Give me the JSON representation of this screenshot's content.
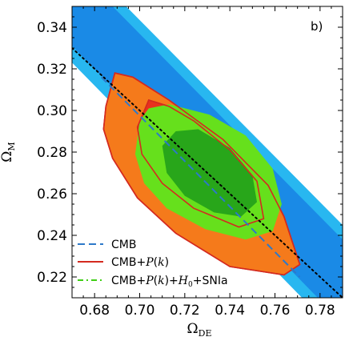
{
  "chart_data": {
    "type": "contour",
    "panel_label": "b)",
    "xlabel": "Ω",
    "xlabel_sub": "DE",
    "ylabel": "Ω",
    "ylabel_sub": "M",
    "xlim": [
      0.67,
      0.79
    ],
    "ylim": [
      0.21,
      0.35
    ],
    "xticks": [
      0.68,
      0.7,
      0.72,
      0.74,
      0.76,
      0.78
    ],
    "yticks": [
      0.22,
      0.24,
      0.26,
      0.28,
      0.3,
      0.32,
      0.34
    ],
    "xtick_labels": [
      "0.68",
      "0.70",
      "0.72",
      "0.74",
      "0.76",
      "0.78"
    ],
    "ytick_labels": [
      "0.22",
      "0.24",
      "0.26",
      "0.28",
      "0.30",
      "0.32",
      "0.34"
    ],
    "colors": {
      "cmb_outer": "#28b7f0",
      "cmb_inner": "#1a8ae6",
      "pk_outer": "#f57a1b",
      "pk_inner": "#e8311e",
      "pk_line": "#d42a1f",
      "sn_outer": "#66e01c",
      "sn_inner": "#28a61a",
      "cmb_dash": "#2d79c9",
      "sn_dash": "#3fcf15",
      "flat_line": "#000000"
    },
    "flatness_line": {
      "label": "",
      "points": [
        [
          0.67,
          0.33
        ],
        [
          0.79,
          0.21
        ]
      ]
    },
    "series": [
      {
        "name": "CMB",
        "role": "legend",
        "legend_parts": [
          "CMB"
        ],
        "style": "dashed",
        "contours": {
          "outer": [
            [
              0.67,
              0.35
            ],
            [
              0.694,
              0.35
            ],
            [
              0.79,
              0.245
            ],
            [
              0.79,
              0.21
            ],
            [
              0.772,
              0.21
            ],
            [
              0.67,
              0.323
            ]
          ],
          "inner": [
            [
              0.67,
              0.35
            ],
            [
              0.688,
              0.35
            ],
            [
              0.79,
              0.238
            ],
            [
              0.79,
              0.21
            ],
            [
              0.779,
              0.21
            ],
            [
              0.67,
              0.331
            ]
          ]
        },
        "best_fit_dash": [
          [
            0.683,
            0.316
          ],
          [
            0.771,
            0.22
          ]
        ]
      },
      {
        "name": "CMB+P(k)",
        "role": "legend",
        "legend_parts": [
          "CMB+",
          "P",
          "(",
          "k",
          ")"
        ],
        "style": "solid",
        "contours": {
          "outer": [
            [
              0.689,
              0.318
            ],
            [
              0.697,
              0.316
            ],
            [
              0.713,
              0.305
            ],
            [
              0.737,
              0.286
            ],
            [
              0.757,
              0.264
            ],
            [
              0.764,
              0.249
            ],
            [
              0.771,
              0.226
            ],
            [
              0.764,
              0.221
            ],
            [
              0.74,
              0.225
            ],
            [
              0.716,
              0.241
            ],
            [
              0.699,
              0.258
            ],
            [
              0.688,
              0.277
            ],
            [
              0.684,
              0.291
            ],
            [
              0.685,
              0.302
            ]
          ],
          "inner": [
            [
              0.704,
              0.305
            ],
            [
              0.713,
              0.302
            ],
            [
              0.724,
              0.295
            ],
            [
              0.74,
              0.281
            ],
            [
              0.752,
              0.266
            ],
            [
              0.755,
              0.248
            ],
            [
              0.744,
              0.244
            ],
            [
              0.724,
              0.253
            ],
            [
              0.71,
              0.265
            ],
            [
              0.701,
              0.279
            ],
            [
              0.699,
              0.292
            ]
          ]
        }
      },
      {
        "name": "CMB+P(k)+H0+SNIa",
        "role": "legend",
        "legend_parts": [
          "CMB+",
          "P",
          "(",
          "k",
          ")+",
          "H",
          "0",
          "+SNIa"
        ],
        "style": "dashdot",
        "contours": {
          "outer": [
            [
              0.7,
              0.295
            ],
            [
              0.704,
              0.301
            ],
            [
              0.713,
              0.303
            ],
            [
              0.731,
              0.298
            ],
            [
              0.747,
              0.288
            ],
            [
              0.759,
              0.272
            ],
            [
              0.763,
              0.255
            ],
            [
              0.759,
              0.242
            ],
            [
              0.747,
              0.238
            ],
            [
              0.729,
              0.243
            ],
            [
              0.712,
              0.253
            ],
            [
              0.702,
              0.265
            ],
            [
              0.698,
              0.279
            ]
          ],
          "inner": [
            [
              0.71,
              0.283
            ],
            [
              0.716,
              0.29
            ],
            [
              0.726,
              0.291
            ],
            [
              0.74,
              0.282
            ],
            [
              0.75,
              0.269
            ],
            [
              0.752,
              0.256
            ],
            [
              0.745,
              0.249
            ],
            [
              0.733,
              0.251
            ],
            [
              0.72,
              0.259
            ],
            [
              0.712,
              0.27
            ]
          ]
        }
      }
    ]
  }
}
